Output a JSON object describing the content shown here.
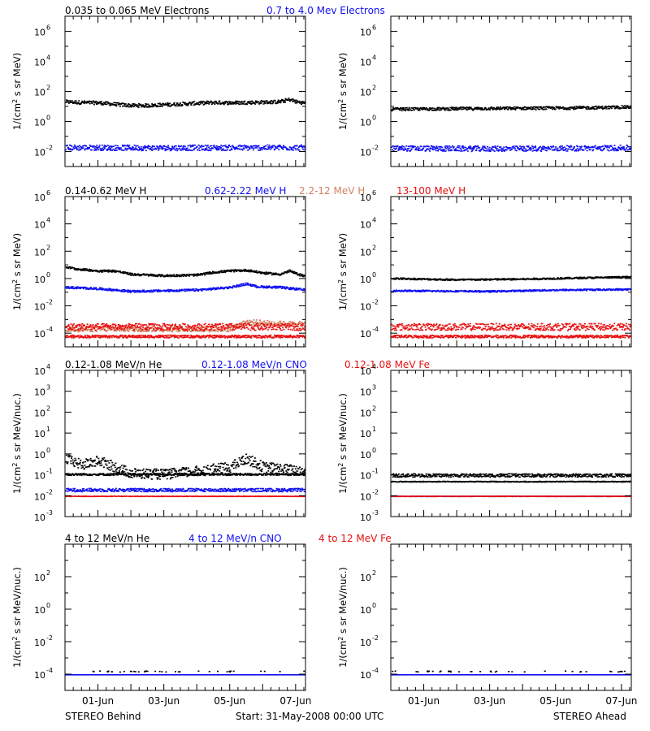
{
  "chart_data": {
    "type": "scatter",
    "footer": {
      "left": "STEREO Behind",
      "center": "Start: 31-May-2008 00:00 UTC",
      "right": "STEREO Ahead"
    },
    "xaxis": {
      "start": "31-May-2008",
      "range_days": [
        0,
        7.3
      ],
      "tick_labels": [
        "01-Jun",
        "03-Jun",
        "05-Jun",
        "07-Jun"
      ],
      "tick_days": [
        1,
        3,
        5,
        7
      ]
    },
    "colors": {
      "black": "#000000",
      "blue": "#1010f0",
      "orange": "#d08060",
      "red": "#e81010"
    },
    "panels": [
      {
        "legend": [
          {
            "text": "0.035 to 0.065 MeV Electrons",
            "color": "black"
          },
          {
            "text": "0.7 to 4.0 Mev Electrons",
            "color": "blue"
          }
        ],
        "ylabel": "1/(cm^2 s sr MeV)",
        "log_ylim": [
          -3,
          7
        ],
        "yticks": [
          {
            "exp": -2,
            "label": "10",
            "sup": "-2"
          },
          {
            "exp": 0,
            "label": "10",
            "sup": "0"
          },
          {
            "exp": 2,
            "label": "10",
            "sup": "2"
          },
          {
            "exp": 4,
            "label": "10",
            "sup": "4"
          },
          {
            "exp": 6,
            "label": "10",
            "sup": "6"
          }
        ],
        "behind": [
          {
            "color": "black",
            "points": [
              [
                0,
                1.35
              ],
              [
                0.5,
                1.3
              ],
              [
                1,
                1.28
              ],
              [
                1.5,
                1.18
              ],
              [
                2,
                1.1
              ],
              [
                2.5,
                1.1
              ],
              [
                3,
                1.15
              ],
              [
                3.5,
                1.2
              ],
              [
                4,
                1.25
              ],
              [
                4.5,
                1.3
              ],
              [
                5,
                1.28
              ],
              [
                5.5,
                1.3
              ],
              [
                6,
                1.32
              ],
              [
                6.5,
                1.35
              ],
              [
                6.8,
                1.5
              ],
              [
                7.0,
                1.35
              ],
              [
                7.3,
                1.25
              ]
            ],
            "jitter": 0.12
          },
          {
            "color": "blue",
            "points": [
              [
                0,
                -1.7
              ],
              [
                3,
                -1.72
              ],
              [
                7.3,
                -1.7
              ]
            ],
            "jitter": 0.18
          }
        ],
        "ahead": [
          {
            "color": "black",
            "points": [
              [
                0,
                0.85
              ],
              [
                3,
                0.9
              ],
              [
                6,
                0.95
              ],
              [
                7.3,
                1.0
              ]
            ],
            "jitter": 0.1
          },
          {
            "color": "blue",
            "points": [
              [
                0,
                -1.75
              ],
              [
                3.5,
                -1.78
              ],
              [
                7.3,
                -1.72
              ]
            ],
            "jitter": 0.18
          }
        ]
      },
      {
        "legend": [
          {
            "text": "0.14-0.62 MeV H",
            "color": "black"
          },
          {
            "text": "0.62-2.22 MeV H",
            "color": "blue"
          },
          {
            "text": "2.2-12 MeV H",
            "color": "orange"
          },
          {
            "text": "13-100 MeV H",
            "color": "red"
          }
        ],
        "ylabel": "1/(cm^2 s sr MeV)",
        "log_ylim": [
          -5,
          6
        ],
        "yticks": [
          {
            "exp": -4,
            "label": "10",
            "sup": "-4"
          },
          {
            "exp": -2,
            "label": "10",
            "sup": "-2"
          },
          {
            "exp": 0,
            "label": "10",
            "sup": "0"
          },
          {
            "exp": 2,
            "label": "10",
            "sup": "2"
          },
          {
            "exp": 4,
            "label": "10",
            "sup": "4"
          },
          {
            "exp": 6,
            "label": "10",
            "sup": "6"
          }
        ],
        "behind": [
          {
            "color": "black",
            "points": [
              [
                0,
                0.9
              ],
              [
                0.3,
                0.75
              ],
              [
                1,
                0.6
              ],
              [
                1.5,
                0.6
              ],
              [
                2,
                0.35
              ],
              [
                2.5,
                0.3
              ],
              [
                3,
                0.25
              ],
              [
                4,
                0.3
              ],
              [
                4.5,
                0.5
              ],
              [
                5,
                0.6
              ],
              [
                5.5,
                0.65
              ],
              [
                6,
                0.45
              ],
              [
                6.5,
                0.35
              ],
              [
                6.8,
                0.6
              ],
              [
                7.0,
                0.4
              ],
              [
                7.3,
                0.2
              ]
            ],
            "jitter": 0.08
          },
          {
            "color": "blue",
            "points": [
              [
                0,
                -0.6
              ],
              [
                1,
                -0.7
              ],
              [
                2,
                -0.9
              ],
              [
                3,
                -0.85
              ],
              [
                4,
                -0.8
              ],
              [
                5,
                -0.6
              ],
              [
                5.5,
                -0.35
              ],
              [
                5.8,
                -0.55
              ],
              [
                6.5,
                -0.6
              ],
              [
                7.3,
                -0.8
              ]
            ],
            "jitter": 0.08
          },
          {
            "color": "orange",
            "points": [
              [
                5,
                -3.65
              ],
              [
                5.5,
                -3.15
              ],
              [
                6,
                -3.2
              ],
              [
                6.8,
                -3.3
              ]
            ],
            "jitter": 0.2
          },
          {
            "color": "red",
            "points": [
              [
                0,
                -3.5
              ],
              [
                3,
                -3.5
              ],
              [
                7.3,
                -3.5
              ]
            ],
            "jitter": 0.25
          },
          {
            "color": "red",
            "points": [
              [
                0,
                -4.2
              ],
              [
                7.3,
                -4.2
              ]
            ],
            "jitter": 0.1
          }
        ],
        "ahead": [
          {
            "color": "black",
            "points": [
              [
                0,
                0.05
              ],
              [
                2,
                -0.05
              ],
              [
                4,
                0.0
              ],
              [
                6,
                0.1
              ],
              [
                7.3,
                0.15
              ]
            ],
            "jitter": 0.06
          },
          {
            "color": "blue",
            "points": [
              [
                0,
                -0.85
              ],
              [
                3,
                -0.9
              ],
              [
                5,
                -0.8
              ],
              [
                7.3,
                -0.75
              ]
            ],
            "jitter": 0.06
          },
          {
            "color": "red",
            "points": [
              [
                0,
                -3.5
              ],
              [
                7.3,
                -3.5
              ]
            ],
            "jitter": 0.25
          },
          {
            "color": "red",
            "points": [
              [
                0,
                -4.2
              ],
              [
                7.3,
                -4.2
              ]
            ],
            "jitter": 0.1
          }
        ]
      },
      {
        "legend": [
          {
            "text": "0.12-1.08 MeV/n He",
            "color": "black"
          },
          {
            "text": "0.12-1.08 MeV/n CNO",
            "color": "blue"
          },
          {
            "text": "0.12-1.08 MeV Fe",
            "color": "red"
          }
        ],
        "ylabel": "1/(cm^2 s sr MeV/nuc.)",
        "log_ylim": [
          -3,
          4
        ],
        "yticks": [
          {
            "exp": -3,
            "label": "10",
            "sup": "-3"
          },
          {
            "exp": -2,
            "label": "10",
            "sup": "-2"
          },
          {
            "exp": -1,
            "label": "10",
            "sup": "-1"
          },
          {
            "exp": 0,
            "label": "10",
            "sup": "0"
          },
          {
            "exp": 1,
            "label": "10",
            "sup": "1"
          },
          {
            "exp": 2,
            "label": "10",
            "sup": "2"
          },
          {
            "exp": 3,
            "label": "10",
            "sup": "3"
          },
          {
            "exp": 4,
            "label": "10",
            "sup": "4"
          }
        ],
        "behind": [
          {
            "color": "black",
            "points": [
              [
                0,
                -0.2
              ],
              [
                0.5,
                -0.5
              ],
              [
                1,
                -0.3
              ],
              [
                1.5,
                -0.6
              ],
              [
                2,
                -0.9
              ],
              [
                3,
                -0.95
              ],
              [
                4,
                -0.8
              ],
              [
                5,
                -0.6
              ],
              [
                5.5,
                -0.2
              ],
              [
                6,
                -0.6
              ],
              [
                7.3,
                -0.8
              ]
            ],
            "jitter": 0.25
          },
          {
            "color": "black",
            "points": [
              [
                0,
                -0.95
              ],
              [
                7.3,
                -0.95
              ]
            ],
            "jitter": 0.05
          },
          {
            "color": "blue",
            "points": [
              [
                0,
                -1.7
              ],
              [
                7.3,
                -1.7
              ]
            ],
            "jitter": 0.08
          },
          {
            "color": "red",
            "points": [
              [
                0,
                -2.0
              ],
              [
                7.3,
                -2.0
              ]
            ],
            "jitter": 0.01
          }
        ],
        "ahead": [
          {
            "color": "black",
            "points": [
              [
                0,
                -1.3
              ],
              [
                7.3,
                -1.3
              ]
            ],
            "jitter": 0.02
          },
          {
            "color": "black",
            "points": [
              [
                0,
                -1.0
              ],
              [
                7.3,
                -1.0
              ]
            ],
            "jitter": 0.08
          },
          {
            "color": "blue",
            "points": [
              [
                0,
                -2.0
              ],
              [
                7.3,
                -2.0
              ]
            ],
            "jitter": 0.01
          },
          {
            "color": "red",
            "points": [
              [
                0,
                -2.0
              ],
              [
                7.3,
                -2.0
              ]
            ],
            "jitter": 0.01
          }
        ]
      },
      {
        "legend": [
          {
            "text": "4 to 12 MeV/n He",
            "color": "black"
          },
          {
            "text": "4 to 12 MeV/n CNO",
            "color": "blue"
          },
          {
            "text": "4 to 12 MeV Fe",
            "color": "red"
          }
        ],
        "ylabel": "1/(cm^2 s sr MeV/nuc.)",
        "log_ylim": [
          -5,
          4
        ],
        "yticks": [
          {
            "exp": -4,
            "label": "10",
            "sup": "-4"
          },
          {
            "exp": -2,
            "label": "10",
            "sup": "-2"
          },
          {
            "exp": 0,
            "label": "10",
            "sup": "0"
          },
          {
            "exp": 2,
            "label": "10",
            "sup": "2"
          }
        ],
        "behind": [
          {
            "color": "blue",
            "points": [
              [
                0,
                -4.0
              ],
              [
                7.3,
                -4.0
              ]
            ],
            "jitter": 0.0
          },
          {
            "color": "black",
            "points": [
              [
                0,
                -3.8
              ],
              [
                7.3,
                -3.8
              ]
            ],
            "jitter": 0.03,
            "sparse": true
          }
        ],
        "ahead": [
          {
            "color": "blue",
            "points": [
              [
                0,
                -4.0
              ],
              [
                7.3,
                -4.0
              ]
            ],
            "jitter": 0.0
          },
          {
            "color": "black",
            "points": [
              [
                0,
                -3.8
              ],
              [
                7.3,
                -3.8
              ]
            ],
            "jitter": 0.03,
            "sparse": true
          }
        ]
      }
    ]
  }
}
